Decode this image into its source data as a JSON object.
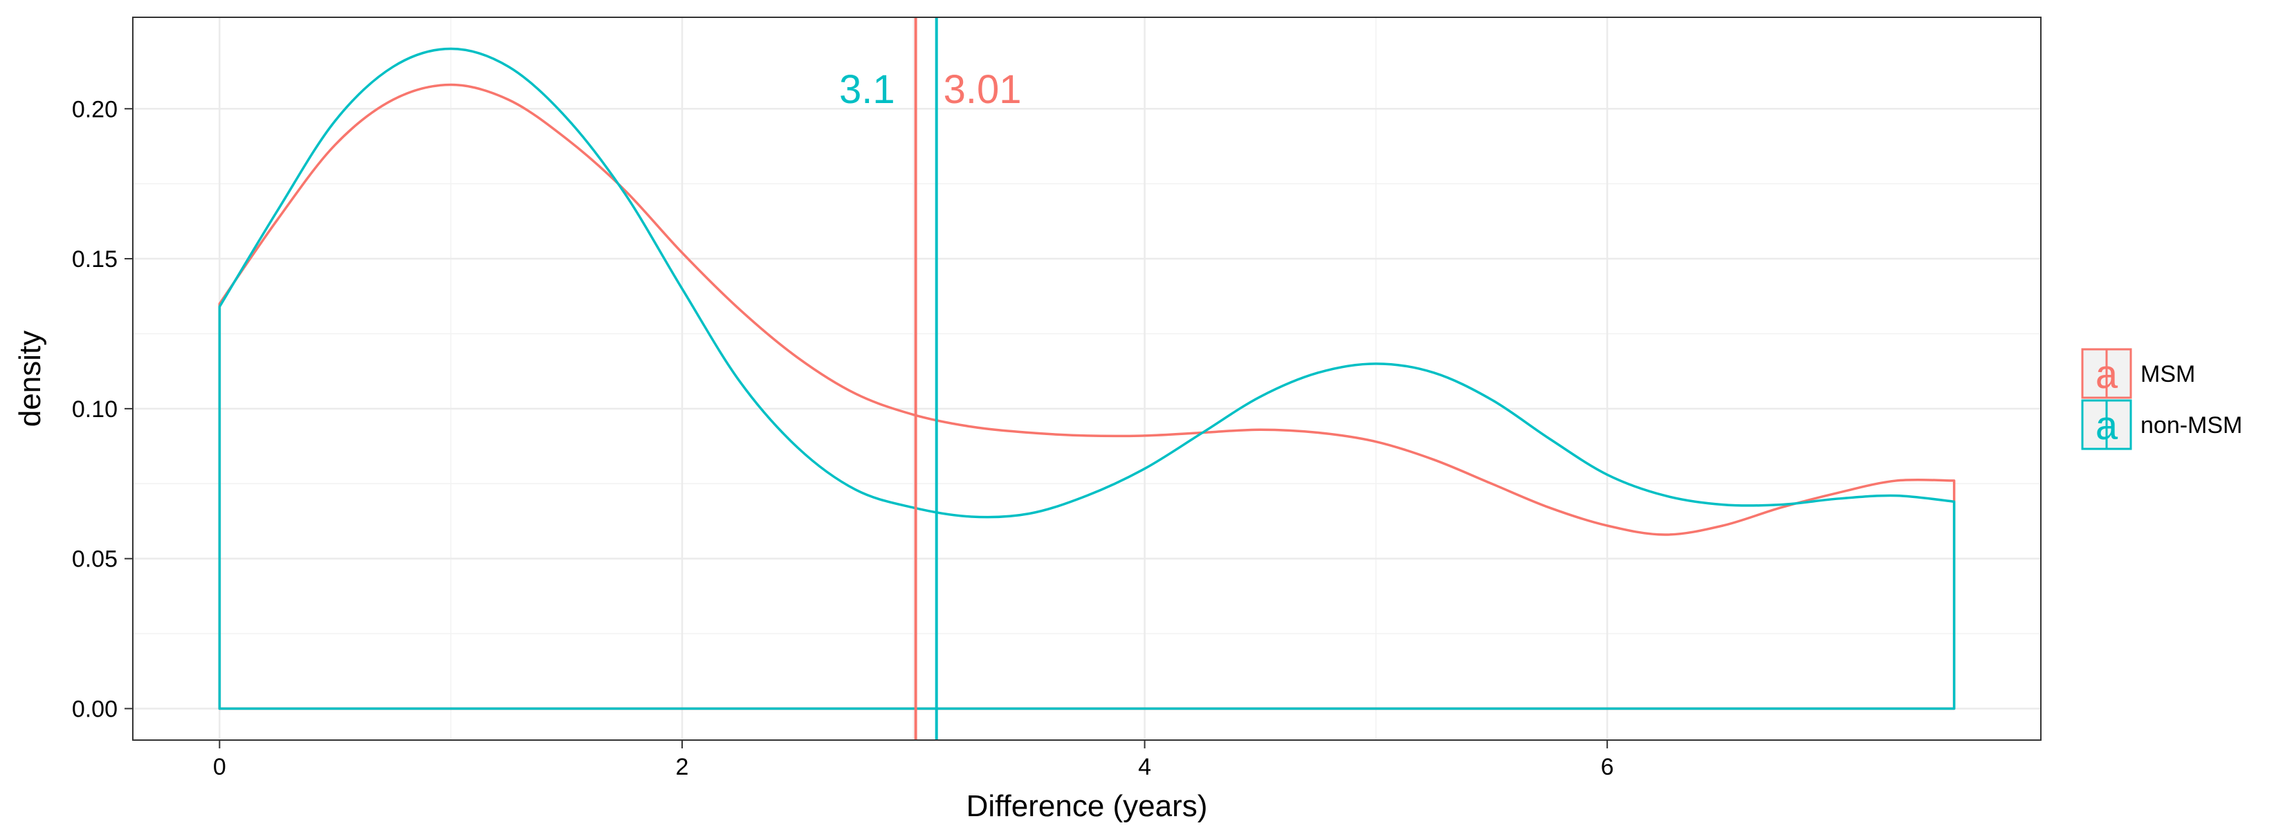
{
  "chart_data": {
    "type": "line",
    "title": "",
    "xlabel": "Difference (years)",
    "ylabel": "density",
    "xlim": [
      -0.375,
      7.875
    ],
    "ylim": [
      -0.0105,
      0.2305
    ],
    "x_ticks": [
      0,
      2,
      4,
      6
    ],
    "x_tick_labels": [
      "0",
      "2",
      "4",
      "6"
    ],
    "y_ticks": [
      0.0,
      0.05,
      0.1,
      0.15,
      0.2
    ],
    "y_tick_labels": [
      "0.00",
      "0.05",
      "0.10",
      "0.15",
      "0.20"
    ],
    "grid": true,
    "legend": {
      "position": "right",
      "key_glyph": "a"
    },
    "series": [
      {
        "name": "MSM",
        "color": "#F8766D",
        "x": [
          0,
          0.25,
          0.5,
          0.75,
          1.0,
          1.25,
          1.5,
          1.75,
          2.0,
          2.25,
          2.5,
          2.75,
          3.0,
          3.25,
          3.5,
          3.75,
          4.0,
          4.25,
          4.5,
          4.75,
          5.0,
          5.25,
          5.5,
          5.75,
          6.0,
          6.25,
          6.5,
          6.75,
          7.0,
          7.25,
          7.5
        ],
        "y": [
          0.135,
          0.163,
          0.188,
          0.203,
          0.208,
          0.203,
          0.19,
          0.173,
          0.152,
          0.133,
          0.117,
          0.105,
          0.098,
          0.094,
          0.092,
          0.091,
          0.091,
          0.092,
          0.093,
          0.092,
          0.089,
          0.083,
          0.075,
          0.067,
          0.061,
          0.058,
          0.061,
          0.067,
          0.072,
          0.076,
          0.076
        ],
        "mean": 3.01,
        "mean_label": "3.01"
      },
      {
        "name": "non-MSM",
        "color": "#00BFC4",
        "x": [
          0,
          0.25,
          0.5,
          0.75,
          1.0,
          1.25,
          1.5,
          1.75,
          2.0,
          2.25,
          2.5,
          2.75,
          3.0,
          3.25,
          3.5,
          3.75,
          4.0,
          4.25,
          4.5,
          4.75,
          5.0,
          5.25,
          5.5,
          5.75,
          6.0,
          6.25,
          6.5,
          6.75,
          7.0,
          7.25,
          7.5
        ],
        "y": [
          0.134,
          0.166,
          0.196,
          0.214,
          0.22,
          0.214,
          0.197,
          0.172,
          0.14,
          0.109,
          0.087,
          0.073,
          0.067,
          0.064,
          0.065,
          0.071,
          0.08,
          0.092,
          0.104,
          0.112,
          0.115,
          0.112,
          0.103,
          0.09,
          0.078,
          0.071,
          0.068,
          0.068,
          0.07,
          0.071,
          0.069
        ],
        "mean": 3.1,
        "mean_label": "3.1"
      }
    ]
  }
}
